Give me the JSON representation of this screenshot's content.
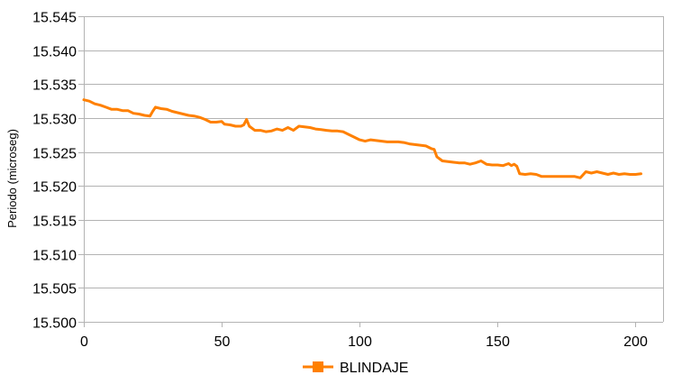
{
  "chart_data": {
    "type": "line",
    "title": "",
    "xlabel": "",
    "ylabel": "Periodo (microseg)",
    "xlim": [
      0,
      210
    ],
    "ylim": [
      15.5,
      15.545
    ],
    "x_ticks": [
      0,
      50,
      100,
      150,
      200
    ],
    "x_tick_labels": [
      "0",
      "50",
      "100",
      "150",
      "200"
    ],
    "y_ticks": [
      15.5,
      15.505,
      15.51,
      15.515,
      15.52,
      15.525,
      15.53,
      15.535,
      15.54,
      15.545
    ],
    "y_tick_labels": [
      "15.500",
      "15.505",
      "15.510",
      "15.515",
      "15.520",
      "15.525",
      "15.530",
      "15.535",
      "15.540",
      "15.545"
    ],
    "grid": "horizontal",
    "legend": "bottom",
    "colors": {
      "series": "#ff8000",
      "grid": "#b3b3b3",
      "axis": "#b3b3b3"
    },
    "series": [
      {
        "name": "BLINDAJE",
        "color": "#ff8000",
        "marker": "square",
        "points": [
          [
            0,
            15.5327
          ],
          [
            2,
            15.5325
          ],
          [
            4,
            15.5321
          ],
          [
            6,
            15.5319
          ],
          [
            8,
            15.5316
          ],
          [
            10,
            15.5313
          ],
          [
            12,
            15.5313
          ],
          [
            14,
            15.5311
          ],
          [
            16,
            15.5311
          ],
          [
            18,
            15.5307
          ],
          [
            20,
            15.5306
          ],
          [
            22,
            15.5304
          ],
          [
            24,
            15.5303
          ],
          [
            25,
            15.531
          ],
          [
            26,
            15.5316
          ],
          [
            28,
            15.5314
          ],
          [
            30,
            15.5313
          ],
          [
            32,
            15.531
          ],
          [
            34,
            15.5308
          ],
          [
            36,
            15.5306
          ],
          [
            38,
            15.5304
          ],
          [
            40,
            15.5303
          ],
          [
            42,
            15.5301
          ],
          [
            44,
            15.5298
          ],
          [
            46,
            15.5294
          ],
          [
            48,
            15.5294
          ],
          [
            50,
            15.5295
          ],
          [
            51,
            15.5291
          ],
          [
            53,
            15.529
          ],
          [
            55,
            15.5288
          ],
          [
            57,
            15.5288
          ],
          [
            58,
            15.529
          ],
          [
            59,
            15.5298
          ],
          [
            60,
            15.5288
          ],
          [
            62,
            15.5282
          ],
          [
            64,
            15.5282
          ],
          [
            66,
            15.528
          ],
          [
            68,
            15.5281
          ],
          [
            70,
            15.5284
          ],
          [
            72,
            15.5282
          ],
          [
            74,
            15.5286
          ],
          [
            76,
            15.5282
          ],
          [
            78,
            15.5288
          ],
          [
            80,
            15.5287
          ],
          [
            82,
            15.5286
          ],
          [
            84,
            15.5284
          ],
          [
            86,
            15.5283
          ],
          [
            88,
            15.5282
          ],
          [
            90,
            15.5281
          ],
          [
            92,
            15.5281
          ],
          [
            94,
            15.528
          ],
          [
            96,
            15.5276
          ],
          [
            98,
            15.5272
          ],
          [
            100,
            15.5268
          ],
          [
            102,
            15.5266
          ],
          [
            104,
            15.5268
          ],
          [
            106,
            15.5267
          ],
          [
            108,
            15.5266
          ],
          [
            110,
            15.5265
          ],
          [
            112,
            15.5265
          ],
          [
            114,
            15.5265
          ],
          [
            116,
            15.5264
          ],
          [
            118,
            15.5262
          ],
          [
            120,
            15.5261
          ],
          [
            122,
            15.526
          ],
          [
            124,
            15.5259
          ],
          [
            126,
            15.5255
          ],
          [
            127,
            15.5254
          ],
          [
            128,
            15.5243
          ],
          [
            130,
            15.5237
          ],
          [
            132,
            15.5236
          ],
          [
            134,
            15.5235
          ],
          [
            136,
            15.5234
          ],
          [
            138,
            15.5234
          ],
          [
            140,
            15.5232
          ],
          [
            142,
            15.5234
          ],
          [
            144,
            15.5237
          ],
          [
            146,
            15.5232
          ],
          [
            148,
            15.5231
          ],
          [
            150,
            15.5231
          ],
          [
            152,
            15.523
          ],
          [
            154,
            15.5233
          ],
          [
            155,
            15.523
          ],
          [
            156,
            15.5232
          ],
          [
            157,
            15.5229
          ],
          [
            158,
            15.5218
          ],
          [
            160,
            15.5217
          ],
          [
            162,
            15.5218
          ],
          [
            164,
            15.5217
          ],
          [
            166,
            15.5214
          ],
          [
            168,
            15.5214
          ],
          [
            170,
            15.5214
          ],
          [
            172,
            15.5214
          ],
          [
            174,
            15.5214
          ],
          [
            176,
            15.5214
          ],
          [
            178,
            15.5214
          ],
          [
            180,
            15.5212
          ],
          [
            182,
            15.5221
          ],
          [
            184,
            15.5219
          ],
          [
            186,
            15.5221
          ],
          [
            188,
            15.5219
          ],
          [
            190,
            15.5217
          ],
          [
            192,
            15.5219
          ],
          [
            194,
            15.5217
          ],
          [
            196,
            15.5218
          ],
          [
            198,
            15.5217
          ],
          [
            200,
            15.5217
          ],
          [
            202,
            15.5218
          ]
        ]
      }
    ]
  }
}
